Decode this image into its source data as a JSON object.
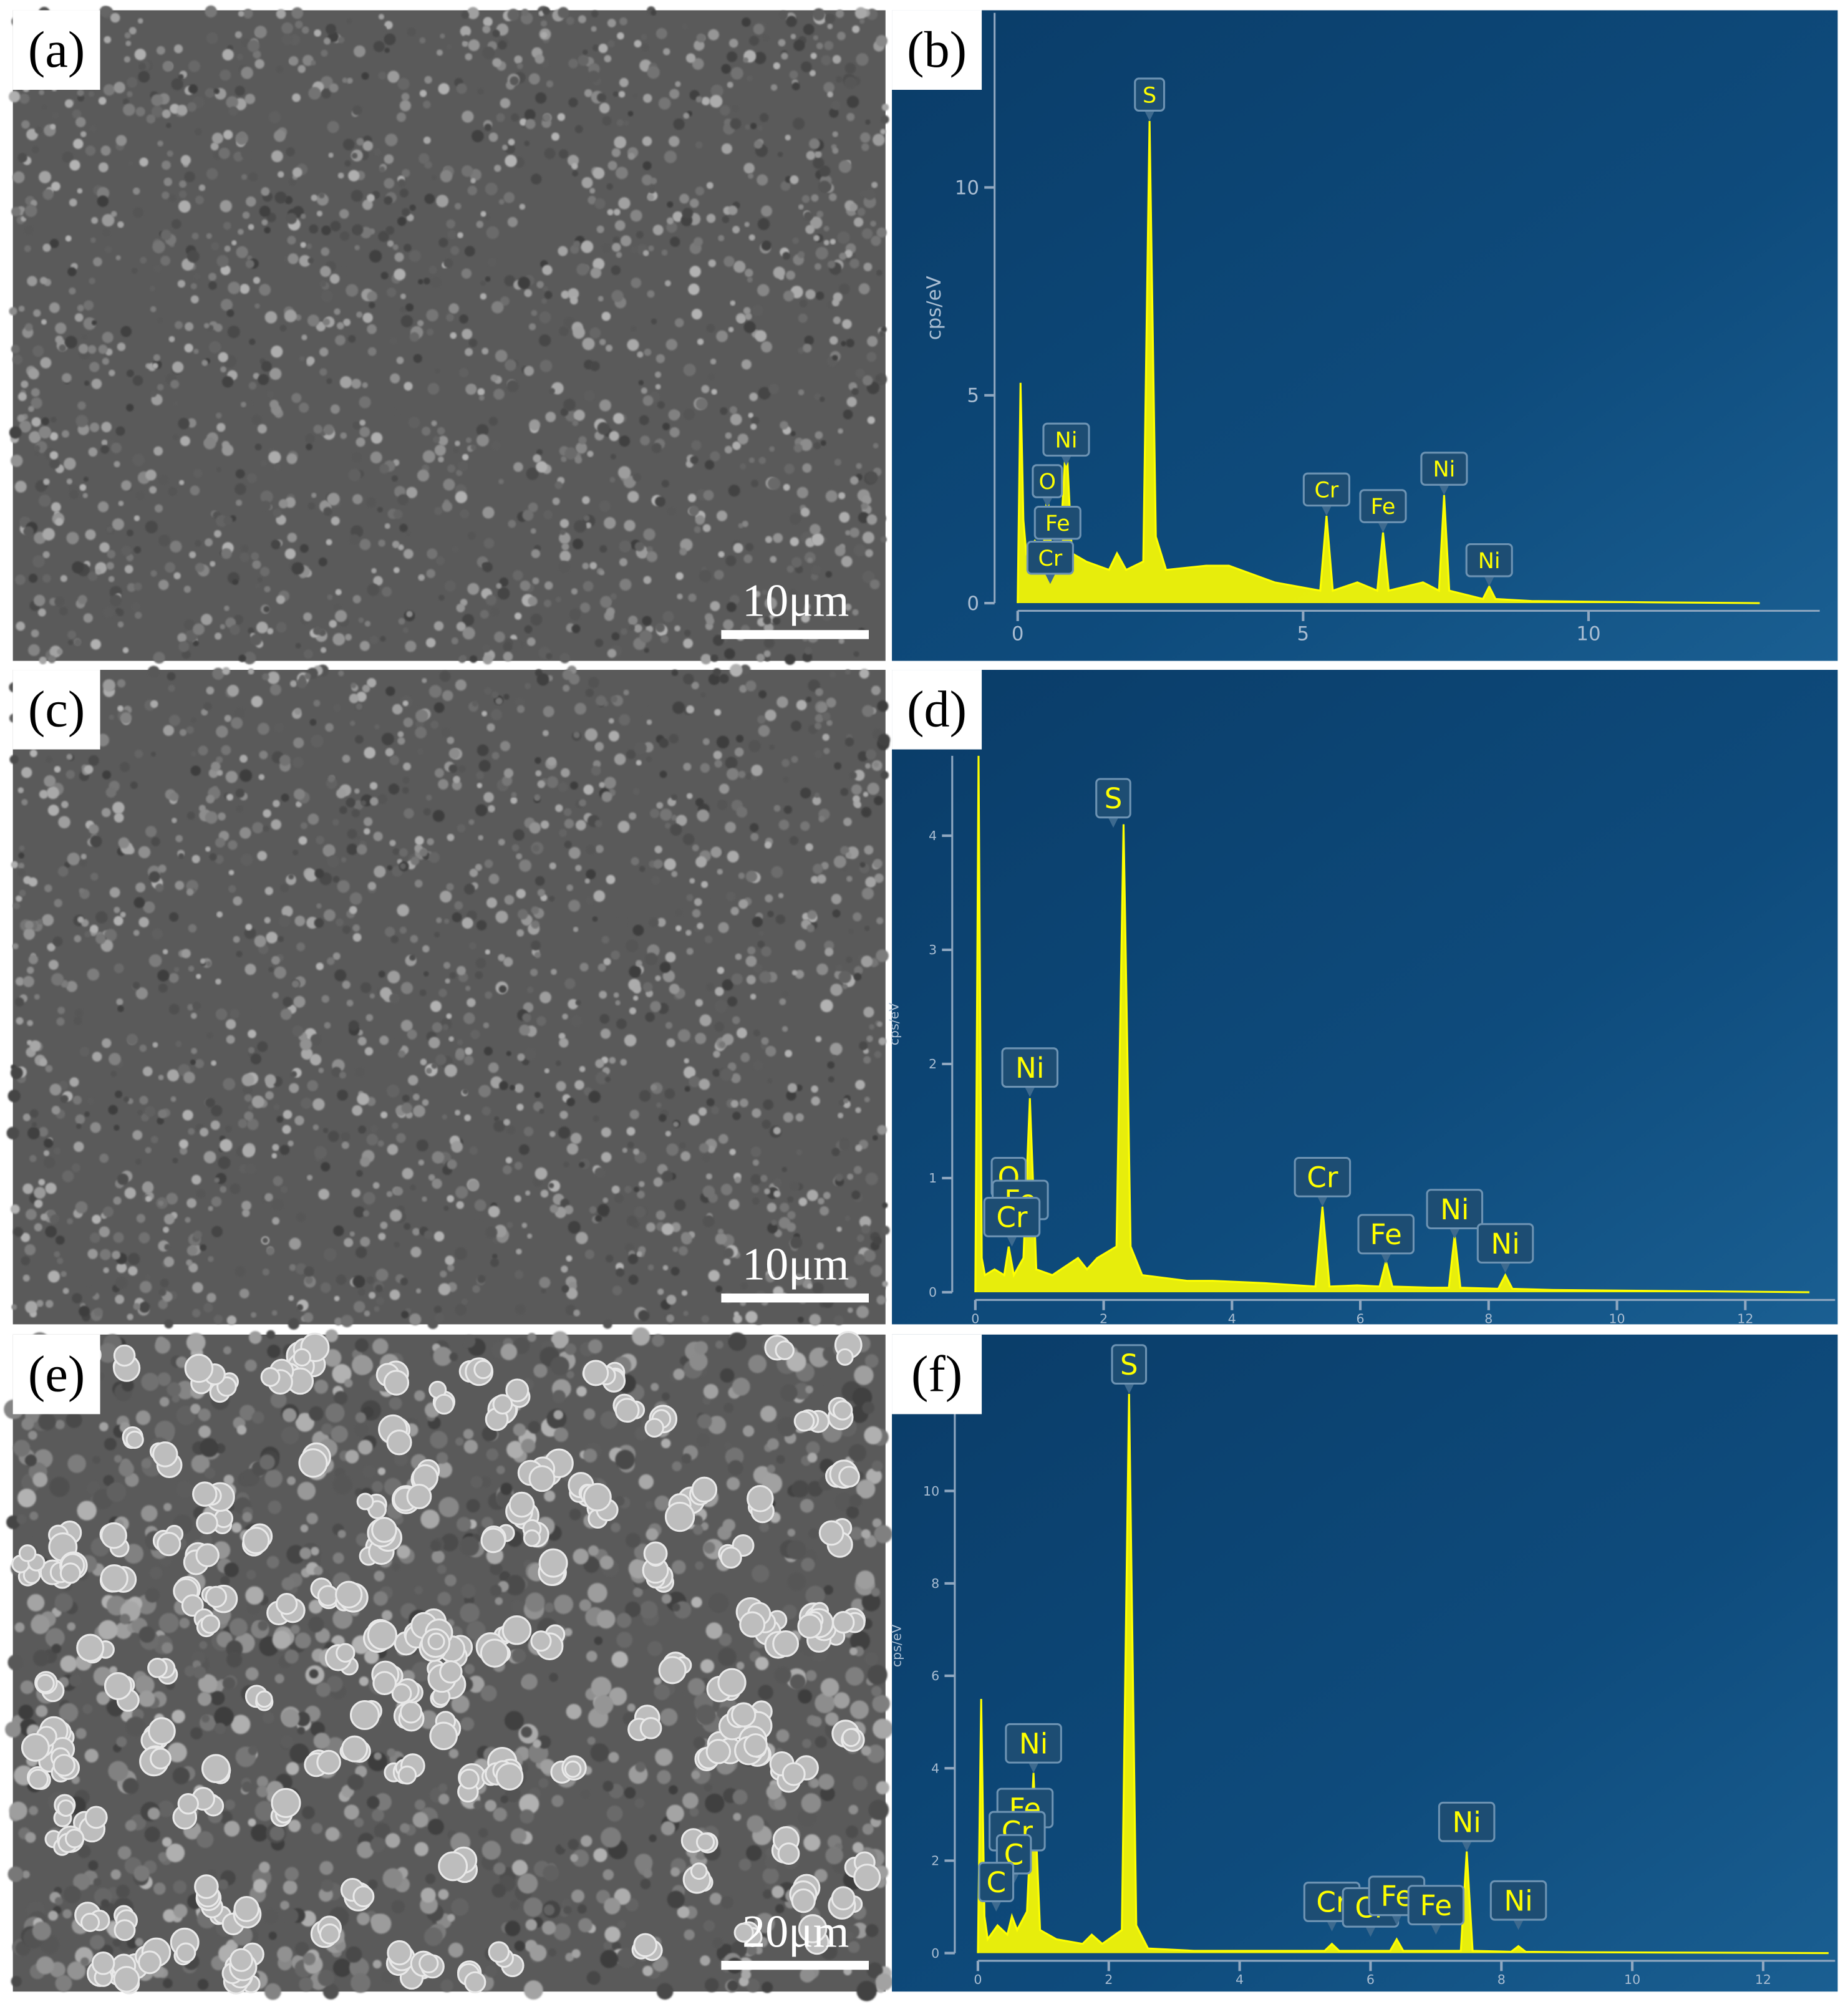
{
  "sem_panels": [
    {
      "label": "(a)",
      "scale_bar": "10μm"
    },
    {
      "label": "(c)",
      "scale_bar": "10μm"
    },
    {
      "label": "(e)",
      "scale_bar": "20μm"
    }
  ],
  "chart_data": [
    {
      "type": "area",
      "panel_label": "(b)",
      "y_label": "cps/eV",
      "color": "#ffff00",
      "x": [
        0,
        0.05,
        0.1,
        0.15,
        0.3,
        0.45,
        0.52,
        0.6,
        0.75,
        0.85,
        0.95,
        1.2,
        1.6,
        1.74,
        1.9,
        2.2,
        2.31,
        2.42,
        2.6,
        3.3,
        3.7,
        4.5,
        5.3,
        5.41,
        5.52,
        5.95,
        6.3,
        6.4,
        6.5,
        7.1,
        7.38,
        7.47,
        7.56,
        8.15,
        8.26,
        8.37,
        9,
        11,
        13
      ],
      "values": [
        0,
        5.3,
        2,
        1.2,
        1.5,
        1.2,
        2.8,
        1,
        1.5,
        4,
        1.2,
        1,
        0.8,
        1.2,
        0.8,
        1,
        11.6,
        1.6,
        0.8,
        0.9,
        0.9,
        0.5,
        0.3,
        2.1,
        0.3,
        0.5,
        0.3,
        1.7,
        0.3,
        0.5,
        0.3,
        2.6,
        0.3,
        0.1,
        0.4,
        0.1,
        0.05,
        0.02,
        0
      ],
      "xlim": [
        0,
        14.05
      ],
      "ylim": [
        0,
        14.2
      ],
      "xticks": [
        0,
        5,
        10
      ],
      "yticks": [
        0,
        5,
        10
      ],
      "annotations": [
        {
          "text": "S",
          "x": 2.31,
          "y": 11.6
        },
        {
          "text": "Ni",
          "x": 0.85,
          "y": 3.3
        },
        {
          "text": "O",
          "x": 0.52,
          "y": 2.3
        },
        {
          "text": "Fe",
          "x": 0.7,
          "y": 1.3
        },
        {
          "text": "Cr",
          "x": 0.57,
          "y": 0.46
        },
        {
          "text": "Cr",
          "x": 5.41,
          "y": 2.1
        },
        {
          "text": "Fe",
          "x": 6.4,
          "y": 1.7
        },
        {
          "text": "Ni",
          "x": 7.47,
          "y": 2.6
        },
        {
          "text": "Ni",
          "x": 8.26,
          "y": 0.4
        }
      ]
    },
    {
      "type": "area",
      "panel_label": "(d)",
      "y_label": "cps/eV",
      "color": "#ffff00",
      "x": [
        0,
        0.05,
        0.1,
        0.15,
        0.3,
        0.45,
        0.52,
        0.6,
        0.75,
        0.85,
        0.95,
        1.2,
        1.6,
        1.74,
        1.9,
        2.2,
        2.31,
        2.42,
        2.6,
        3.3,
        3.7,
        4.5,
        5.3,
        5.41,
        5.52,
        5.95,
        6.3,
        6.4,
        6.5,
        7.1,
        7.38,
        7.47,
        7.56,
        8.15,
        8.26,
        8.37,
        9,
        11,
        13
      ],
      "values": [
        0,
        4.7,
        0.3,
        0.15,
        0.2,
        0.15,
        0.4,
        0.15,
        0.3,
        1.7,
        0.2,
        0.15,
        0.3,
        0.2,
        0.3,
        0.4,
        4.1,
        0.4,
        0.15,
        0.1,
        0.1,
        0.08,
        0.05,
        0.75,
        0.05,
        0.06,
        0.05,
        0.27,
        0.05,
        0.04,
        0.04,
        0.5,
        0.04,
        0.03,
        0.15,
        0.03,
        0.02,
        0.01,
        0
      ],
      "xlim": [
        0,
        13.4
      ],
      "ylim": [
        0,
        4.7
      ],
      "xticks": [
        0,
        2,
        4,
        6,
        8,
        10,
        12
      ],
      "yticks": [
        0,
        1,
        2,
        3,
        4
      ],
      "annotations": [
        {
          "text": "S",
          "x": 2.15,
          "y": 4.07
        },
        {
          "text": "Ni",
          "x": 0.85,
          "y": 1.71
        },
        {
          "text": "O",
          "x": 0.52,
          "y": 0.75
        },
        {
          "text": "Fe",
          "x": 0.7,
          "y": 0.55
        },
        {
          "text": "Cr",
          "x": 0.57,
          "y": 0.4
        },
        {
          "text": "Cr",
          "x": 5.41,
          "y": 0.75
        },
        {
          "text": "Fe",
          "x": 6.4,
          "y": 0.25
        },
        {
          "text": "Ni",
          "x": 7.47,
          "y": 0.47
        },
        {
          "text": "Ni",
          "x": 8.26,
          "y": 0.17
        }
      ]
    },
    {
      "type": "area",
      "panel_label": "(f)",
      "y_label": "cps/eV",
      "color": "#ffff00",
      "x": [
        0,
        0.05,
        0.1,
        0.15,
        0.3,
        0.45,
        0.52,
        0.6,
        0.75,
        0.85,
        0.95,
        1.2,
        1.6,
        1.74,
        1.9,
        2.2,
        2.31,
        2.42,
        2.6,
        3.3,
        3.7,
        4.5,
        5.3,
        5.41,
        5.52,
        5.95,
        6.3,
        6.4,
        6.5,
        7.1,
        7.38,
        7.47,
        7.56,
        8.15,
        8.26,
        8.37,
        9,
        11,
        13
      ],
      "values": [
        0,
        5.5,
        0.8,
        0.3,
        0.6,
        0.4,
        0.8,
        0.5,
        0.9,
        3.9,
        0.5,
        0.3,
        0.2,
        0.4,
        0.2,
        0.5,
        12.1,
        0.6,
        0.1,
        0.05,
        0.05,
        0.05,
        0.05,
        0.2,
        0.05,
        0.05,
        0.05,
        0.3,
        0.05,
        0.05,
        0.05,
        2.2,
        0.05,
        0.03,
        0.15,
        0.03,
        0.02,
        0.01,
        0
      ],
      "xlim": [
        0,
        13.1
      ],
      "ylim": [
        0,
        13.3
      ],
      "xticks": [
        0,
        2,
        4,
        6,
        8,
        10,
        12
      ],
      "yticks": [
        0,
        2,
        4,
        6,
        8,
        10
      ],
      "annotations": [
        {
          "text": "S",
          "x": 2.31,
          "y": 12.1
        },
        {
          "text": "Ni",
          "x": 0.85,
          "y": 3.9
        },
        {
          "text": "Fe",
          "x": 0.72,
          "y": 2.5
        },
        {
          "text": "Cr",
          "x": 0.6,
          "y": 2.0
        },
        {
          "text": "C",
          "x": 0.55,
          "y": 1.5
        },
        {
          "text": "C",
          "x": 0.28,
          "y": 0.9
        },
        {
          "text": "Cr",
          "x": 5.41,
          "y": 0.47
        },
        {
          "text": "Cr",
          "x": 6.0,
          "y": 0.35
        },
        {
          "text": "Fe",
          "x": 6.4,
          "y": 0.6
        },
        {
          "text": "Fe",
          "x": 7.0,
          "y": 0.4
        },
        {
          "text": "Ni",
          "x": 7.47,
          "y": 2.2
        },
        {
          "text": "Ni",
          "x": 8.26,
          "y": 0.5
        }
      ]
    }
  ]
}
